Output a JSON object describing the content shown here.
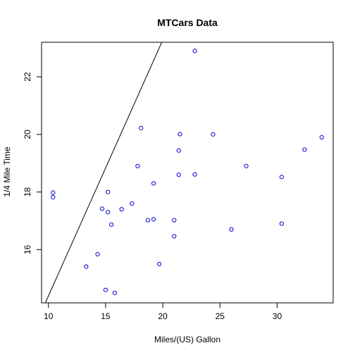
{
  "chart_data": {
    "type": "scatter",
    "title": "MTCars Data",
    "xlabel": "Miles/(US) Gallon",
    "ylabel": "1/4 Mile Time",
    "xlim": [
      9.4,
      34.9
    ],
    "ylim": [
      14.15,
      23.2
    ],
    "xticks": [
      10,
      15,
      20,
      25,
      30
    ],
    "yticks": [
      16,
      18,
      20,
      22
    ],
    "grid": false,
    "point_color": "#0000cc",
    "line_color": "#000000",
    "points": [
      {
        "x": 21.0,
        "y": 16.46
      },
      {
        "x": 21.0,
        "y": 17.02
      },
      {
        "x": 22.8,
        "y": 18.61
      },
      {
        "x": 21.4,
        "y": 19.44
      },
      {
        "x": 18.7,
        "y": 17.02
      },
      {
        "x": 18.1,
        "y": 20.22
      },
      {
        "x": 14.3,
        "y": 15.84
      },
      {
        "x": 24.4,
        "y": 20.0
      },
      {
        "x": 22.8,
        "y": 22.9
      },
      {
        "x": 19.2,
        "y": 18.3
      },
      {
        "x": 17.8,
        "y": 18.9
      },
      {
        "x": 16.4,
        "y": 17.4
      },
      {
        "x": 17.3,
        "y": 17.6
      },
      {
        "x": 15.2,
        "y": 18.0
      },
      {
        "x": 10.4,
        "y": 17.98
      },
      {
        "x": 10.4,
        "y": 17.82
      },
      {
        "x": 14.7,
        "y": 17.42
      },
      {
        "x": 32.4,
        "y": 19.47
      },
      {
        "x": 30.4,
        "y": 18.52
      },
      {
        "x": 33.9,
        "y": 19.9
      },
      {
        "x": 21.5,
        "y": 20.01
      },
      {
        "x": 15.5,
        "y": 16.87
      },
      {
        "x": 15.2,
        "y": 17.3
      },
      {
        "x": 13.3,
        "y": 15.41
      },
      {
        "x": 19.2,
        "y": 17.05
      },
      {
        "x": 27.3,
        "y": 18.9
      },
      {
        "x": 26.0,
        "y": 16.7
      },
      {
        "x": 30.4,
        "y": 16.9
      },
      {
        "x": 15.8,
        "y": 14.5
      },
      {
        "x": 19.7,
        "y": 15.5
      },
      {
        "x": 15.0,
        "y": 14.6
      },
      {
        "x": 21.4,
        "y": 18.6
      }
    ],
    "fit_line": {
      "intercept": 5.5,
      "slope": 0.8889
    }
  }
}
